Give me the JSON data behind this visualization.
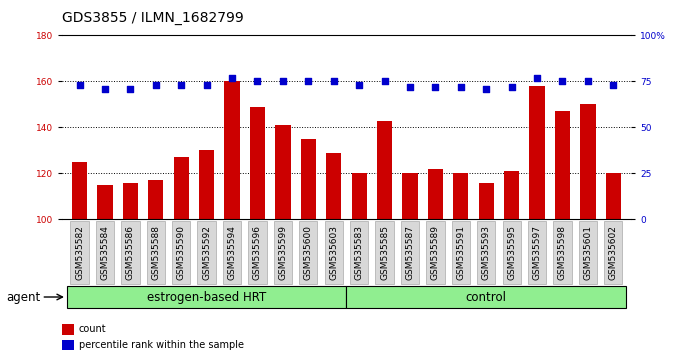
{
  "title": "GDS3855 / ILMN_1682799",
  "samples": [
    "GSM535582",
    "GSM535584",
    "GSM535586",
    "GSM535588",
    "GSM535590",
    "GSM535592",
    "GSM535594",
    "GSM535596",
    "GSM535599",
    "GSM535600",
    "GSM535603",
    "GSM535583",
    "GSM535585",
    "GSM535587",
    "GSM535589",
    "GSM535591",
    "GSM535593",
    "GSM535595",
    "GSM535597",
    "GSM535598",
    "GSM535601",
    "GSM535602"
  ],
  "count_values": [
    125,
    115,
    116,
    117,
    127,
    130,
    160,
    149,
    141,
    135,
    129,
    120,
    143,
    120,
    122,
    120,
    116,
    121,
    158,
    147,
    150,
    120
  ],
  "percentile_values": [
    73,
    71,
    71,
    73,
    73,
    73,
    77,
    75,
    75,
    75,
    75,
    73,
    75,
    72,
    72,
    72,
    71,
    72,
    77,
    75,
    75,
    73
  ],
  "ylim_left": [
    100,
    180
  ],
  "ylim_right": [
    0,
    100
  ],
  "yticks_left": [
    100,
    120,
    140,
    160,
    180
  ],
  "yticks_right": [
    0,
    25,
    50,
    75,
    100
  ],
  "ytick_labels_right": [
    "0",
    "25",
    "50",
    "75",
    "100%"
  ],
  "bar_color": "#cc0000",
  "dot_color": "#0000cc",
  "group1_label": "estrogen-based HRT",
  "group2_label": "control",
  "group1_count": 11,
  "group2_count": 11,
  "agent_label": "agent",
  "legend_count_label": "count",
  "legend_pct_label": "percentile rank within the sample",
  "bg_plot": "#ffffff",
  "bg_xticklabel": "#d8d8d8",
  "bg_group": "#90ee90",
  "title_fontsize": 10,
  "tick_fontsize": 6.5,
  "group_fontsize": 8.5
}
